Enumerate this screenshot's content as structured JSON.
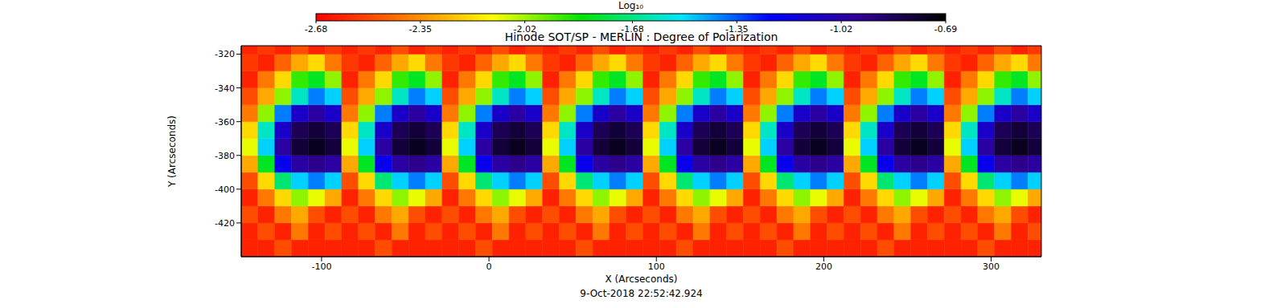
{
  "chart_data": {
    "type": "heatmap",
    "title": "Hinode SOT/SP - MERLIN : Degree of Polarization",
    "xlabel": "X (Arcseconds)",
    "ylabel": "Y (Arcseconds)",
    "annotation": "9-Oct-2018 22:52:42.924",
    "xlim": [
      -148,
      330
    ],
    "ylim": [
      -440,
      -315
    ],
    "xticks": [
      -100,
      0,
      100,
      200,
      300
    ],
    "yticks": [
      -420,
      -400,
      -380,
      -360,
      -340,
      -320
    ],
    "colorbar": {
      "label": "Log₁₀",
      "range": [
        -2.68,
        -0.69
      ],
      "ticks": [
        -2.68,
        -2.35,
        -2.02,
        -1.68,
        -1.35,
        -1.02,
        -0.69
      ]
    },
    "x_edges": [
      -148,
      -138,
      -128,
      -118,
      -108,
      -98,
      -88,
      -78,
      -68,
      -58,
      -48,
      -38,
      -28,
      -18,
      -8,
      2,
      12,
      22,
      32,
      42,
      52,
      62,
      72,
      82,
      92,
      102,
      112,
      122,
      132,
      142,
      152,
      162,
      172,
      182,
      192,
      202,
      212,
      222,
      232,
      242,
      252,
      262,
      272,
      282,
      292,
      302,
      312,
      322,
      332
    ],
    "y_edges": [
      -440,
      -430,
      -420,
      -410,
      -400,
      -390,
      -380,
      -370,
      -360,
      -350,
      -340,
      -330,
      -320,
      -315
    ],
    "z": [
      [
        -2.6,
        -2.6,
        -2.5,
        -2.6,
        -2.6,
        -2.6,
        -2.6,
        -2.6,
        -2.5,
        -2.6,
        -2.6,
        -2.6,
        -2.6,
        -2.6,
        -2.5,
        -2.6,
        -2.6,
        -2.6,
        -2.6,
        -2.6,
        -2.5,
        -2.6,
        -2.6,
        -2.6,
        -2.6,
        -2.6,
        -2.5,
        -2.6,
        -2.6,
        -2.6,
        -2.6,
        -2.6,
        -2.5,
        -2.6,
        -2.6,
        -2.6,
        -2.6,
        -2.6,
        -2.5,
        -2.6,
        -2.6,
        -2.6,
        -2.6,
        -2.6,
        -2.5,
        -2.6,
        -2.6,
        -2.6
      ],
      [
        -2.6,
        -2.5,
        -2.6,
        -2.4,
        -2.6,
        -2.5,
        -2.6,
        -2.5,
        -2.6,
        -2.4,
        -2.6,
        -2.5,
        -2.6,
        -2.5,
        -2.6,
        -2.4,
        -2.6,
        -2.5,
        -2.6,
        -2.5,
        -2.6,
        -2.4,
        -2.6,
        -2.5,
        -2.6,
        -2.5,
        -2.6,
        -2.4,
        -2.6,
        -2.5,
        -2.6,
        -2.5,
        -2.6,
        -2.4,
        -2.6,
        -2.5,
        -2.6,
        -2.5,
        -2.6,
        -2.4,
        -2.6,
        -2.5,
        -2.6,
        -2.5,
        -2.6,
        -2.4,
        -2.6,
        -2.5
      ],
      [
        -2.5,
        -2.6,
        -2.4,
        -2.3,
        -2.5,
        -2.6,
        -2.5,
        -2.6,
        -2.4,
        -2.3,
        -2.5,
        -2.6,
        -2.5,
        -2.6,
        -2.4,
        -2.3,
        -2.5,
        -2.6,
        -2.5,
        -2.6,
        -2.4,
        -2.3,
        -2.5,
        -2.6,
        -2.5,
        -2.6,
        -2.4,
        -2.3,
        -2.5,
        -2.6,
        -2.5,
        -2.6,
        -2.4,
        -2.3,
        -2.5,
        -2.6,
        -2.5,
        -2.6,
        -2.4,
        -2.3,
        -2.5,
        -2.6,
        -2.5,
        -2.6,
        -2.4,
        -2.3,
        -2.5,
        -2.6
      ],
      [
        -2.6,
        -2.4,
        -2.2,
        -2.0,
        -2.1,
        -2.3,
        -2.6,
        -2.4,
        -2.2,
        -2.0,
        -2.1,
        -2.3,
        -2.6,
        -2.4,
        -2.2,
        -2.0,
        -2.1,
        -2.3,
        -2.6,
        -2.4,
        -2.2,
        -2.0,
        -2.1,
        -2.3,
        -2.6,
        -2.4,
        -2.2,
        -2.0,
        -2.1,
        -2.3,
        -2.6,
        -2.4,
        -2.2,
        -2.0,
        -2.1,
        -2.3,
        -2.6,
        -2.4,
        -2.2,
        -2.0,
        -2.1,
        -2.3,
        -2.6,
        -2.4,
        -2.2,
        -2.0,
        -2.1,
        -2.3
      ],
      [
        -2.5,
        -2.2,
        -1.7,
        -1.5,
        -1.4,
        -1.5,
        -2.5,
        -2.2,
        -1.7,
        -1.5,
        -1.4,
        -1.5,
        -2.5,
        -2.2,
        -1.7,
        -1.5,
        -1.4,
        -1.5,
        -2.5,
        -2.2,
        -1.7,
        -1.5,
        -1.4,
        -1.5,
        -2.5,
        -2.2,
        -1.7,
        -1.5,
        -1.4,
        -1.5,
        -2.5,
        -2.2,
        -1.7,
        -1.5,
        -1.4,
        -1.5,
        -2.5,
        -2.2,
        -1.7,
        -1.5,
        -1.4,
        -1.5,
        -2.5,
        -2.2,
        -1.7,
        -1.5,
        -1.4,
        -1.5
      ],
      [
        -2.3,
        -1.8,
        -1.2,
        -1.0,
        -0.95,
        -1.0,
        -2.3,
        -1.8,
        -1.2,
        -1.0,
        -0.95,
        -1.0,
        -2.3,
        -1.8,
        -1.2,
        -1.0,
        -0.95,
        -1.0,
        -2.3,
        -1.8,
        -1.2,
        -1.0,
        -0.95,
        -1.0,
        -2.3,
        -1.8,
        -1.2,
        -1.0,
        -0.95,
        -1.0,
        -2.3,
        -1.8,
        -1.2,
        -1.0,
        -0.95,
        -1.0,
        -2.3,
        -1.8,
        -1.2,
        -1.0,
        -0.95,
        -1.0,
        -2.3,
        -1.8,
        -1.2,
        -1.0,
        -0.95,
        -1.0
      ],
      [
        -2.1,
        -1.5,
        -1.0,
        -0.8,
        -0.75,
        -0.8,
        -2.1,
        -1.5,
        -1.0,
        -0.8,
        -0.75,
        -0.8,
        -2.1,
        -1.5,
        -1.0,
        -0.8,
        -0.75,
        -0.8,
        -2.1,
        -1.5,
        -1.0,
        -0.8,
        -0.75,
        -0.8,
        -2.1,
        -1.5,
        -1.0,
        -0.8,
        -0.75,
        -0.8,
        -2.1,
        -1.5,
        -1.0,
        -0.8,
        -0.75,
        -0.8,
        -2.1,
        -1.5,
        -1.0,
        -0.8,
        -0.75,
        -0.8,
        -2.1,
        -1.5,
        -1.0,
        -0.8,
        -0.75,
        -0.8
      ],
      [
        -2.2,
        -1.6,
        -1.1,
        -0.85,
        -0.8,
        -0.85,
        -2.2,
        -1.6,
        -1.1,
        -0.85,
        -0.8,
        -0.85,
        -2.2,
        -1.6,
        -1.1,
        -0.85,
        -0.8,
        -0.85,
        -2.2,
        -1.6,
        -1.1,
        -0.85,
        -0.8,
        -0.85,
        -2.2,
        -1.6,
        -1.1,
        -0.85,
        -0.8,
        -0.85,
        -2.2,
        -1.6,
        -1.1,
        -0.85,
        -0.8,
        -0.85,
        -2.2,
        -1.6,
        -1.1,
        -0.85,
        -0.8,
        -0.85,
        -2.2,
        -1.6,
        -1.1,
        -0.85,
        -0.8,
        -0.85
      ],
      [
        -2.4,
        -2.0,
        -1.4,
        -1.1,
        -1.0,
        -1.1,
        -2.4,
        -2.0,
        -1.4,
        -1.1,
        -1.0,
        -1.1,
        -2.4,
        -2.0,
        -1.4,
        -1.1,
        -1.0,
        -1.1,
        -2.4,
        -2.0,
        -1.4,
        -1.1,
        -1.0,
        -1.1,
        -2.4,
        -2.0,
        -1.4,
        -1.1,
        -1.0,
        -1.1,
        -2.4,
        -2.0,
        -1.4,
        -1.1,
        -1.0,
        -1.1,
        -2.4,
        -2.0,
        -1.4,
        -1.1,
        -1.0,
        -1.1,
        -2.4,
        -2.0,
        -1.4,
        -1.1,
        -1.0,
        -1.1
      ],
      [
        -2.5,
        -2.3,
        -2.0,
        -1.6,
        -1.4,
        -1.5,
        -2.5,
        -2.3,
        -2.0,
        -1.6,
        -1.4,
        -1.5,
        -2.5,
        -2.3,
        -2.0,
        -1.6,
        -1.4,
        -1.5,
        -2.5,
        -2.3,
        -2.0,
        -1.6,
        -1.4,
        -1.5,
        -2.5,
        -2.3,
        -2.0,
        -1.6,
        -1.4,
        -1.5,
        -2.5,
        -2.3,
        -2.0,
        -1.6,
        -1.4,
        -1.5,
        -2.5,
        -2.3,
        -2.0,
        -1.6,
        -1.4,
        -1.5,
        -2.5,
        -2.3,
        -2.0,
        -1.6,
        -1.4,
        -1.5
      ],
      [
        -2.6,
        -2.4,
        -2.2,
        -1.9,
        -1.8,
        -2.0,
        -2.6,
        -2.4,
        -2.2,
        -1.9,
        -1.8,
        -2.0,
        -2.6,
        -2.4,
        -2.2,
        -1.9,
        -1.8,
        -2.0,
        -2.6,
        -2.4,
        -2.2,
        -1.9,
        -1.8,
        -2.0,
        -2.6,
        -2.4,
        -2.2,
        -1.9,
        -1.8,
        -2.0,
        -2.6,
        -2.4,
        -2.2,
        -1.9,
        -1.8,
        -2.0,
        -2.6,
        -2.4,
        -2.2,
        -1.9,
        -1.8,
        -2.0,
        -2.6,
        -2.4,
        -2.2,
        -1.9,
        -1.8,
        -2.0
      ],
      [
        -2.55,
        -2.6,
        -2.45,
        -2.3,
        -2.2,
        -2.4,
        -2.55,
        -2.6,
        -2.45,
        -2.3,
        -2.2,
        -2.4,
        -2.55,
        -2.6,
        -2.45,
        -2.3,
        -2.2,
        -2.4,
        -2.55,
        -2.6,
        -2.45,
        -2.3,
        -2.2,
        -2.4,
        -2.55,
        -2.6,
        -2.45,
        -2.3,
        -2.2,
        -2.4,
        -2.55,
        -2.6,
        -2.45,
        -2.3,
        -2.2,
        -2.4,
        -2.55,
        -2.6,
        -2.45,
        -2.3,
        -2.2,
        -2.4,
        -2.55,
        -2.6,
        -2.45,
        -2.3,
        -2.2,
        -2.4
      ],
      [
        -2.6,
        -2.55,
        -2.6,
        -2.5,
        -2.6,
        -2.55,
        -2.6,
        -2.55,
        -2.6,
        -2.5,
        -2.6,
        -2.55,
        -2.6,
        -2.55,
        -2.6,
        -2.5,
        -2.6,
        -2.55,
        -2.6,
        -2.55,
        -2.6,
        -2.5,
        -2.6,
        -2.55,
        -2.6,
        -2.55,
        -2.6,
        -2.5,
        -2.6,
        -2.55,
        -2.6,
        -2.55,
        -2.6,
        -2.5,
        -2.6,
        -2.55,
        -2.6,
        -2.55,
        -2.6,
        -2.5,
        -2.6,
        -2.55,
        -2.6,
        -2.55,
        -2.6,
        -2.5,
        -2.6,
        -2.55
      ]
    ]
  }
}
